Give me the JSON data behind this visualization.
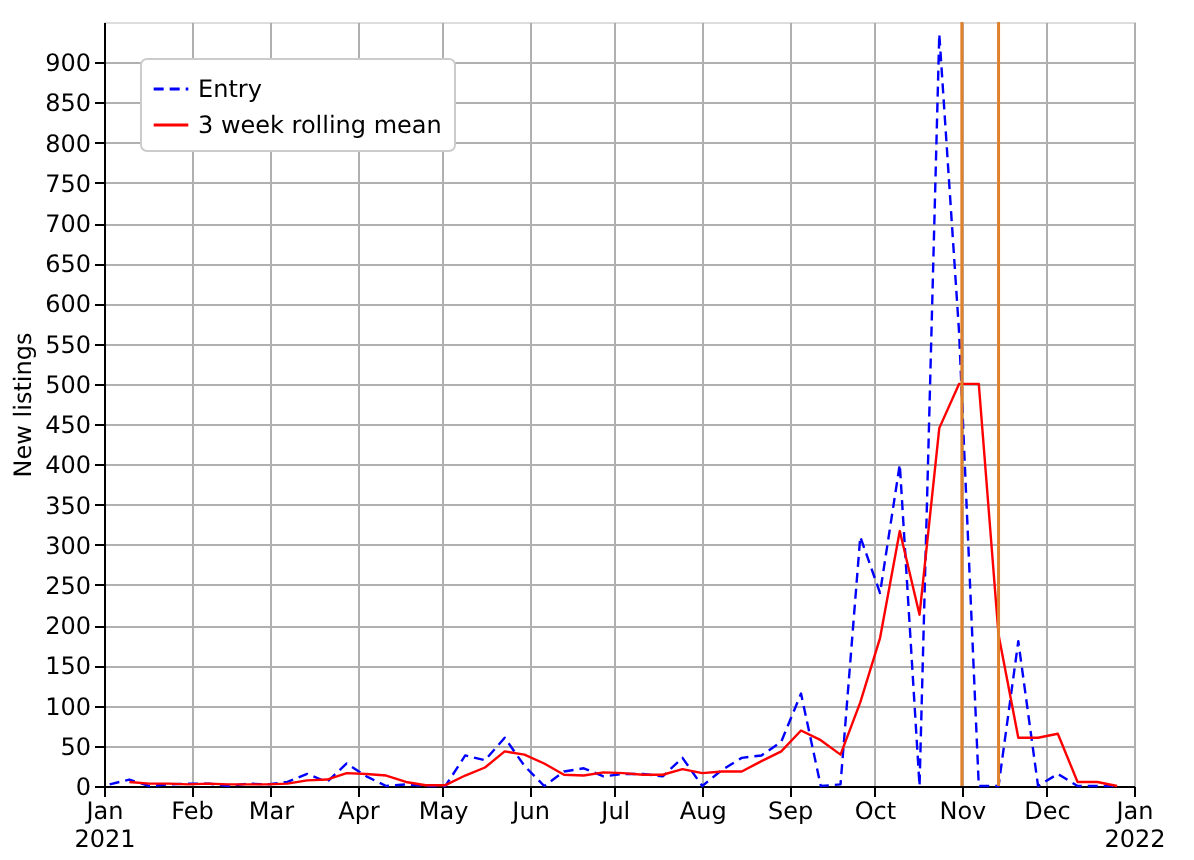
{
  "chart_data": {
    "type": "line",
    "ylabel": "New listings",
    "x": [
      "2021-01-03",
      "2021-01-10",
      "2021-01-17",
      "2021-01-24",
      "2021-01-31",
      "2021-02-07",
      "2021-02-14",
      "2021-02-21",
      "2021-02-28",
      "2021-03-07",
      "2021-03-14",
      "2021-03-21",
      "2021-03-28",
      "2021-04-04",
      "2021-04-11",
      "2021-04-18",
      "2021-04-25",
      "2021-05-02",
      "2021-05-09",
      "2021-05-16",
      "2021-05-23",
      "2021-05-30",
      "2021-06-06",
      "2021-06-13",
      "2021-06-20",
      "2021-06-27",
      "2021-07-04",
      "2021-07-11",
      "2021-07-18",
      "2021-07-25",
      "2021-08-01",
      "2021-08-08",
      "2021-08-15",
      "2021-08-22",
      "2021-08-29",
      "2021-09-05",
      "2021-09-12",
      "2021-09-19",
      "2021-09-26",
      "2021-10-03",
      "2021-10-10",
      "2021-10-17",
      "2021-10-24",
      "2021-10-31",
      "2021-11-07",
      "2021-11-14",
      "2021-11-21",
      "2021-11-28",
      "2021-12-05",
      "2021-12-12",
      "2021-12-19",
      "2021-12-26"
    ],
    "series": [
      {
        "name": "Entry",
        "color": "#0000ff",
        "line_style": "dashed",
        "values": [
          2,
          8,
          0,
          2,
          3,
          3,
          0,
          3,
          2,
          5,
          15,
          5,
          28,
          12,
          0,
          2,
          0,
          0,
          38,
          32,
          60,
          25,
          0,
          18,
          22,
          12,
          15,
          15,
          12,
          35,
          0,
          20,
          35,
          38,
          55,
          115,
          0,
          2,
          310,
          240,
          400,
          0,
          935,
          565,
          0,
          0,
          180,
          0,
          15,
          0,
          0,
          0
        ]
      },
      {
        "name": "3 week rolling mean",
        "color": "#ff0000",
        "line_style": "solid",
        "values": [
          null,
          5,
          3,
          3,
          2,
          3,
          2,
          2,
          2,
          3,
          7,
          8,
          16,
          15,
          13,
          5,
          1,
          1,
          13,
          23,
          43,
          39,
          28,
          14,
          13,
          17,
          16,
          14,
          14,
          21,
          16,
          18,
          18,
          31,
          43,
          69,
          57,
          39,
          104,
          184,
          317,
          213,
          445,
          500,
          500,
          188,
          60,
          60,
          65,
          5,
          5,
          0
        ]
      }
    ],
    "xlim": [
      "2021-01-01",
      "2022-01-01"
    ],
    "xticks": [
      {
        "value": "2021-01-01",
        "label": "Jan\n2021"
      },
      {
        "value": "2021-02-01",
        "label": "Feb"
      },
      {
        "value": "2021-03-01",
        "label": "Mar"
      },
      {
        "value": "2021-04-01",
        "label": "Apr"
      },
      {
        "value": "2021-05-01",
        "label": "May"
      },
      {
        "value": "2021-06-01",
        "label": "Jun"
      },
      {
        "value": "2021-07-01",
        "label": "Jul"
      },
      {
        "value": "2021-08-01",
        "label": "Aug"
      },
      {
        "value": "2021-09-01",
        "label": "Sep"
      },
      {
        "value": "2021-10-01",
        "label": "Oct"
      },
      {
        "value": "2021-11-01",
        "label": "Nov"
      },
      {
        "value": "2021-12-01",
        "label": "Dec"
      },
      {
        "value": "2022-01-01",
        "label": "Jan\n2022"
      }
    ],
    "ylim": [
      0,
      950
    ],
    "yticks": [
      0,
      50,
      100,
      150,
      200,
      250,
      300,
      350,
      400,
      450,
      500,
      550,
      600,
      650,
      700,
      750,
      800,
      850,
      900
    ],
    "ref_lines": [
      {
        "axis": "x",
        "value": "2021-11-01",
        "color": "#e0802a"
      },
      {
        "axis": "x",
        "value": "2021-11-14",
        "color": "#e0802a"
      }
    ],
    "grid": true,
    "legend": "top left",
    "marker": "none"
  }
}
